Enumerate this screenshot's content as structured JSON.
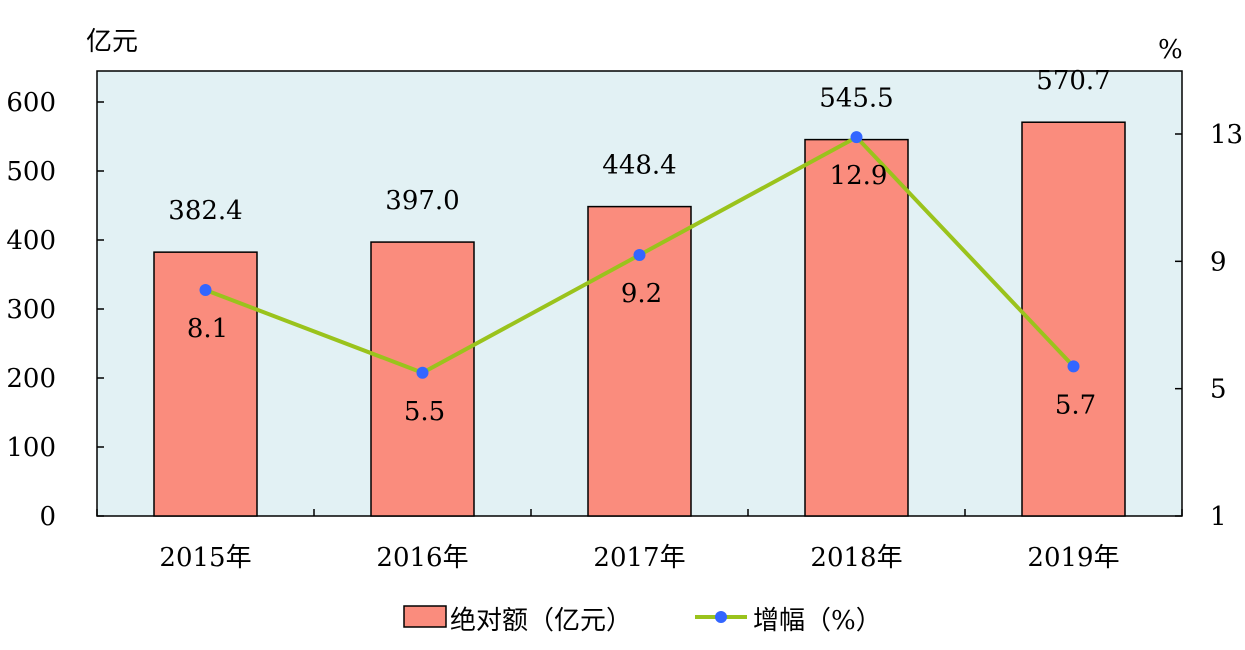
{
  "chart_data": {
    "type": "bar",
    "categories": [
      "2015年",
      "2016年",
      "2017年",
      "2018年",
      "2019年"
    ],
    "series": [
      {
        "name": "绝对额（亿元）",
        "type": "bar",
        "axis": "left",
        "values": [
          382.4,
          397.0,
          448.4,
          545.5,
          570.7
        ],
        "labels": [
          "382.4",
          "397.0",
          "448.4",
          "545.5",
          "570.7"
        ],
        "color": "#fa8c7d"
      },
      {
        "name": "增幅（%）",
        "type": "line",
        "axis": "right",
        "values": [
          8.1,
          5.5,
          9.2,
          12.9,
          5.7
        ],
        "labels": [
          "8.1",
          "5.5",
          "9.2",
          "12.9",
          "5.7"
        ],
        "line_color": "#9ac31c",
        "marker_color": "#3366ff"
      }
    ],
    "left_axis": {
      "unit": "亿元",
      "ylim": [
        0,
        600
      ],
      "ticks": [
        "0",
        "100",
        "200",
        "300",
        "400",
        "500",
        "600"
      ]
    },
    "right_axis": {
      "unit": "%",
      "ylim": [
        1,
        13
      ],
      "ticks": [
        "1",
        "5",
        "9",
        "13"
      ]
    },
    "plot_background": "#e2f1f4",
    "grid": false,
    "legend_position": "bottom"
  }
}
